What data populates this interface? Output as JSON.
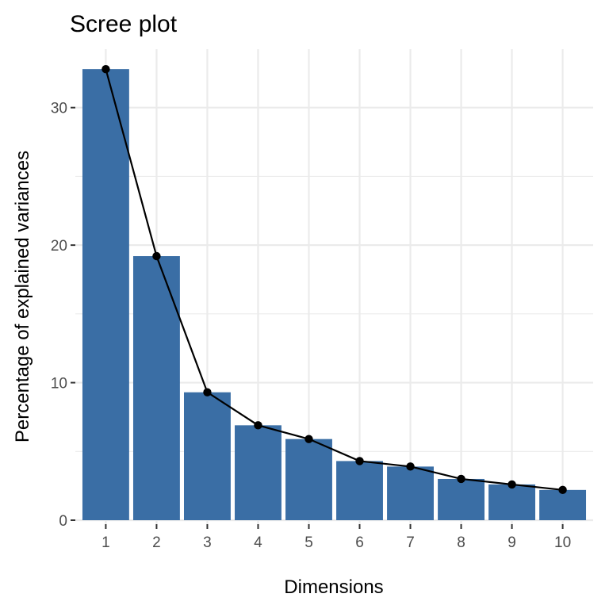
{
  "chart_data": {
    "type": "bar",
    "title": "Scree plot",
    "xlabel": "Dimensions",
    "ylabel": "Percentage of explained variances",
    "categories": [
      "1",
      "2",
      "3",
      "4",
      "5",
      "6",
      "7",
      "8",
      "9",
      "10"
    ],
    "values": [
      32.8,
      19.2,
      9.3,
      6.9,
      5.9,
      4.3,
      3.9,
      3.0,
      2.6,
      2.2
    ],
    "line_overlay": true,
    "y_ticks": [
      0,
      10,
      20,
      30
    ],
    "ylim": [
      0,
      33.5
    ],
    "grid": true,
    "legend": "none",
    "colors": {
      "bar": "#3A6EA5",
      "line": "#000000",
      "point": "#000000",
      "grid": "#EBEBEB",
      "background": "#FFFFFF"
    }
  }
}
